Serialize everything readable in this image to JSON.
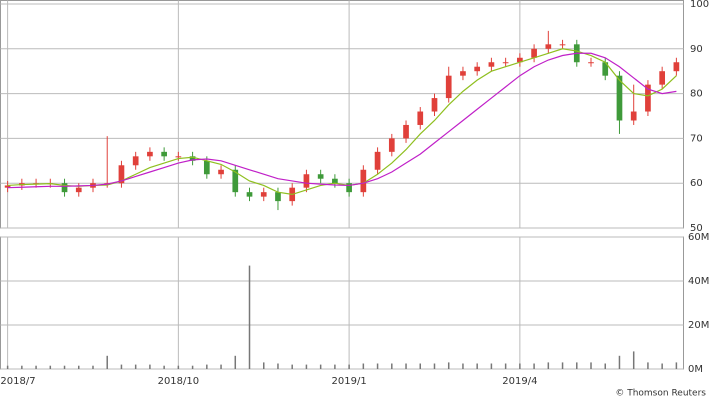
{
  "chart_data": {
    "type": "candlestick",
    "categories": [
      "2018/7",
      null,
      null,
      null,
      null,
      null,
      null,
      null,
      null,
      null,
      null,
      null,
      "2018/10",
      null,
      null,
      null,
      null,
      null,
      null,
      null,
      null,
      null,
      null,
      null,
      "2019/1",
      null,
      null,
      null,
      null,
      null,
      null,
      null,
      null,
      null,
      null,
      null,
      "2019/4",
      null,
      null,
      null,
      null,
      null,
      null,
      null,
      null,
      null,
      null,
      null
    ],
    "open": [
      59,
      59.5,
      60,
      60,
      60,
      58,
      59,
      60,
      60,
      64,
      66,
      67,
      66,
      66,
      65,
      62,
      63,
      58,
      57,
      58,
      56,
      59,
      62,
      61,
      60,
      58,
      63,
      67,
      70,
      73,
      76,
      79,
      84,
      85,
      86,
      87,
      87,
      88,
      90,
      91,
      91,
      87,
      87,
      84,
      74,
      76,
      82,
      85
    ],
    "high": [
      60.5,
      61,
      61,
      61,
      61,
      60,
      61,
      70.5,
      65,
      67,
      68,
      68,
      67,
      67,
      66,
      64,
      64,
      59,
      59,
      59,
      60,
      63,
      63,
      62,
      61,
      64,
      68,
      71,
      74,
      77,
      80,
      86,
      86,
      87,
      88,
      88,
      89,
      91,
      94,
      92,
      92,
      88,
      88,
      85,
      82,
      83,
      86,
      88
    ],
    "low": [
      58,
      58.5,
      59,
      59,
      57,
      57,
      58,
      59,
      59,
      63,
      65,
      65,
      65,
      64,
      61,
      61,
      57,
      56,
      56,
      54,
      55,
      58,
      60,
      59,
      57,
      57,
      62,
      66,
      69,
      72,
      75,
      78,
      83,
      84,
      85,
      86,
      86,
      87,
      89,
      90,
      86,
      86,
      83,
      71,
      73,
      75,
      81,
      84
    ],
    "close": [
      59.5,
      60,
      60,
      60,
      58,
      59,
      60,
      60,
      64,
      66,
      67,
      66,
      66,
      65,
      62,
      63,
      58,
      57,
      58,
      56,
      59,
      62,
      61,
      60,
      58,
      63,
      67,
      70,
      73,
      76,
      79,
      84,
      85,
      86,
      87,
      87,
      88,
      90,
      91,
      91,
      87,
      87,
      84,
      74,
      76,
      82,
      85,
      87
    ],
    "up_color": "#e0403a",
    "down_color": "#3f9a3a",
    "ylim": [
      50,
      100
    ],
    "yticks": [
      50,
      60,
      70,
      80,
      90,
      100
    ],
    "grid": true,
    "moving_averages": [
      {
        "color": "#8fbf1f",
        "values": [
          59.5,
          59.7,
          59.8,
          59.9,
          59.5,
          59.3,
          59.5,
          59.6,
          60.5,
          62,
          63.5,
          64.5,
          65.5,
          65.8,
          65,
          64.2,
          62.5,
          60.5,
          59.5,
          58,
          57.5,
          58.5,
          59.5,
          60,
          59.5,
          60,
          62,
          64.5,
          67.5,
          71,
          74,
          77.5,
          80.5,
          83,
          85,
          86,
          87,
          88,
          89,
          90,
          89.5,
          88.5,
          87,
          83,
          80,
          79.5,
          81,
          84
        ]
      },
      {
        "color": "#c020c8",
        "values": [
          59,
          59.1,
          59.2,
          59.3,
          59.3,
          59.4,
          59.5,
          59.8,
          60.5,
          61.5,
          62.5,
          63.5,
          64.5,
          65.2,
          65.4,
          65,
          64,
          63,
          62,
          61,
          60.5,
          60,
          59.8,
          59.6,
          59.5,
          60,
          61,
          62.5,
          64.5,
          66.5,
          69,
          71.5,
          74,
          76.5,
          79,
          81.5,
          84,
          86,
          87.5,
          88.5,
          89,
          89,
          88,
          86,
          83.5,
          81,
          80,
          80.5
        ]
      }
    ],
    "volume": {
      "color": "#777777",
      "values": [
        1.5,
        1.5,
        1.5,
        1.5,
        1.5,
        1.5,
        1.5,
        6,
        2,
        2,
        2,
        1.5,
        1.5,
        1.5,
        2,
        2,
        6,
        47,
        3,
        2.5,
        2,
        2,
        2,
        2,
        2,
        2.5,
        2.5,
        2.5,
        2.5,
        2.5,
        2.5,
        3,
        2.5,
        2.5,
        2.5,
        2.5,
        2.5,
        2.5,
        3,
        3,
        3,
        3,
        2.5,
        6,
        8,
        3,
        2.5,
        3
      ],
      "ylim": [
        0,
        60
      ],
      "yticks": [
        {
          "value": 0,
          "label": "0M"
        },
        {
          "value": 20,
          "label": "20M"
        },
        {
          "value": 40,
          "label": "40M"
        },
        {
          "value": 60,
          "label": "60M"
        }
      ]
    },
    "credit": "© Thomson Reuters"
  }
}
